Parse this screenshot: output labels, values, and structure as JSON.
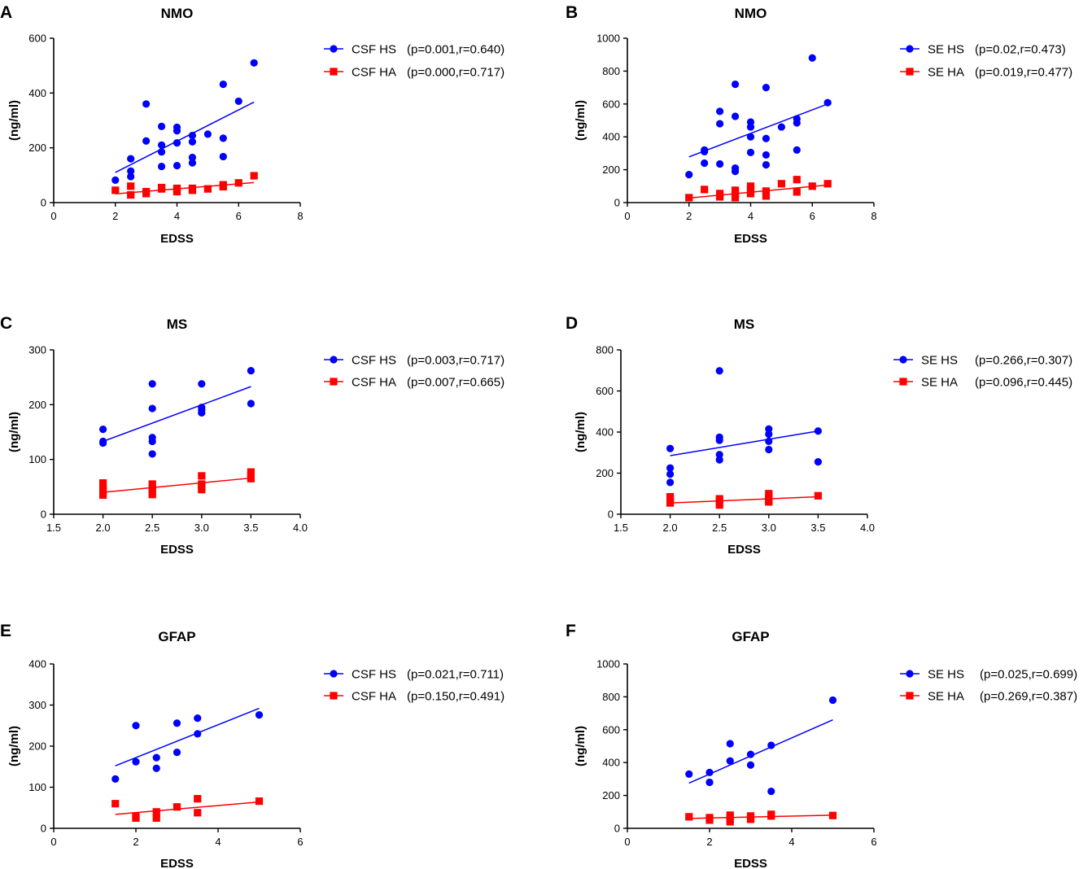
{
  "colors": {
    "hs": "#0000ff",
    "ha": "#ff0000",
    "axis": "#000000"
  },
  "chart_data": [
    {
      "panel": "A",
      "type": "scatter",
      "title": "NMO",
      "xlabel": "EDSS",
      "ylabel": "(ng/ml)",
      "xlim": [
        0,
        8
      ],
      "ylim": [
        0,
        600
      ],
      "xticks": [
        0,
        2,
        4,
        6,
        8
      ],
      "xtick_labels": [
        "0",
        "2",
        "4",
        "6",
        "8"
      ],
      "yticks": [
        0,
        200,
        400,
        600
      ],
      "ytick_labels": [
        "0",
        "200",
        "400",
        "600"
      ],
      "legend_position": "right",
      "series": [
        {
          "name": "CSF HS",
          "stats": "(p=0.001,r=0.640)",
          "color": "#0000ff",
          "marker": "circle",
          "points": [
            [
              2,
              82
            ],
            [
              2.5,
              160
            ],
            [
              2.5,
              115
            ],
            [
              2.5,
              95
            ],
            [
              3,
              360
            ],
            [
              3,
              225
            ],
            [
              3.5,
              278
            ],
            [
              3.5,
              210
            ],
            [
              3.5,
              185
            ],
            [
              3.5,
              132
            ],
            [
              4,
              275
            ],
            [
              4,
              262
            ],
            [
              4,
              218
            ],
            [
              4,
              135
            ],
            [
              4.5,
              245
            ],
            [
              4.5,
              222
            ],
            [
              4.5,
              165
            ],
            [
              4.5,
              145
            ],
            [
              5,
              250
            ],
            [
              5.5,
              432
            ],
            [
              5.5,
              235
            ],
            [
              5.5,
              168
            ],
            [
              6,
              370
            ],
            [
              6.5,
              510
            ]
          ],
          "fit": [
            [
              2,
              110
            ],
            [
              6.5,
              367
            ]
          ]
        },
        {
          "name": "CSF HA",
          "stats": "(p=0.000,r=0.717)",
          "color": "#ff0000",
          "marker": "square",
          "points": [
            [
              2,
              45
            ],
            [
              2.5,
              60
            ],
            [
              2.5,
              28
            ],
            [
              3,
              40
            ],
            [
              3,
              33
            ],
            [
              3.5,
              55
            ],
            [
              3.5,
              50
            ],
            [
              4,
              52
            ],
            [
              4,
              45
            ],
            [
              4,
              40
            ],
            [
              4.5,
              52
            ],
            [
              4.5,
              45
            ],
            [
              5,
              50
            ],
            [
              5.5,
              65
            ],
            [
              5.5,
              58
            ],
            [
              6,
              72
            ],
            [
              6.5,
              98
            ]
          ],
          "fit": [
            [
              2,
              32
            ],
            [
              6.5,
              73
            ]
          ]
        }
      ]
    },
    {
      "panel": "B",
      "type": "scatter",
      "title": "NMO",
      "xlabel": "EDSS",
      "ylabel": "(ng/ml)",
      "xlim": [
        0,
        8
      ],
      "ylim": [
        0,
        1000
      ],
      "xticks": [
        0,
        2,
        4,
        6,
        8
      ],
      "xtick_labels": [
        "0",
        "2",
        "4",
        "6",
        "8"
      ],
      "yticks": [
        0,
        200,
        400,
        600,
        800,
        1000
      ],
      "ytick_labels": [
        "0",
        "200",
        "400",
        "600",
        "800",
        "1000"
      ],
      "legend_position": "right",
      "series": [
        {
          "name": "SE HS",
          "stats": "(p=0.02,r=0.473)",
          "color": "#0000ff",
          "marker": "circle",
          "points": [
            [
              2,
              170
            ],
            [
              2.5,
              320
            ],
            [
              2.5,
              310
            ],
            [
              2.5,
              240
            ],
            [
              3,
              555
            ],
            [
              3,
              480
            ],
            [
              3,
              235
            ],
            [
              3.5,
              720
            ],
            [
              3.5,
              525
            ],
            [
              3.5,
              210
            ],
            [
              3.5,
              190
            ],
            [
              4,
              490
            ],
            [
              4,
              460
            ],
            [
              4,
              400
            ],
            [
              4,
              305
            ],
            [
              4.5,
              700
            ],
            [
              4.5,
              390
            ],
            [
              4.5,
              290
            ],
            [
              4.5,
              230
            ],
            [
              5,
              460
            ],
            [
              5.5,
              510
            ],
            [
              5.5,
              485
            ],
            [
              5.5,
              320
            ],
            [
              6,
              880
            ],
            [
              6.5,
              608
            ]
          ],
          "fit": [
            [
              2,
              278
            ],
            [
              6.5,
              600
            ]
          ]
        },
        {
          "name": "SE HA",
          "stats": "(p=0.019,r=0.477)",
          "color": "#ff0000",
          "marker": "square",
          "points": [
            [
              2,
              30
            ],
            [
              2.5,
              80
            ],
            [
              3,
              55
            ],
            [
              3,
              35
            ],
            [
              3.5,
              75
            ],
            [
              3.5,
              50
            ],
            [
              3.5,
              30
            ],
            [
              4,
              100
            ],
            [
              4,
              80
            ],
            [
              4,
              55
            ],
            [
              4.5,
              70
            ],
            [
              4.5,
              40
            ],
            [
              5,
              115
            ],
            [
              5.5,
              140
            ],
            [
              5.5,
              65
            ],
            [
              6,
              100
            ],
            [
              6.5,
              115
            ]
          ],
          "fit": [
            [
              2,
              28
            ],
            [
              6.5,
              107
            ]
          ]
        }
      ]
    },
    {
      "panel": "C",
      "type": "scatter",
      "title": "MS",
      "xlabel": "EDSS",
      "ylabel": "(ng/ml)",
      "xlim": [
        1.5,
        4.0
      ],
      "ylim": [
        0,
        300
      ],
      "xticks": [
        1.5,
        2.0,
        2.5,
        3.0,
        3.5,
        4.0
      ],
      "xtick_labels": [
        "1.5",
        "2.0",
        "2.5",
        "3.0",
        "3.5",
        "4.0"
      ],
      "yticks": [
        0,
        100,
        200,
        300
      ],
      "ytick_labels": [
        "0",
        "100",
        "200",
        "300"
      ],
      "legend_position": "right",
      "series": [
        {
          "name": "CSF HS",
          "stats": "(p=0.003,r=0.717)",
          "color": "#0000ff",
          "marker": "circle",
          "points": [
            [
              2,
              155
            ],
            [
              2,
              133
            ],
            [
              2,
              130
            ],
            [
              2.5,
              238
            ],
            [
              2.5,
              193
            ],
            [
              2.5,
              140
            ],
            [
              2.5,
              133
            ],
            [
              2.5,
              110
            ],
            [
              3,
              238
            ],
            [
              3,
              195
            ],
            [
              3,
              190
            ],
            [
              3,
              185
            ],
            [
              3.5,
              262
            ],
            [
              3.5,
              202
            ]
          ],
          "fit": [
            [
              2,
              133
            ],
            [
              3.5,
              233
            ]
          ]
        },
        {
          "name": "CSF HA",
          "stats": "(p=0.007,r=0.665)",
          "color": "#ff0000",
          "marker": "square",
          "points": [
            [
              2,
              57
            ],
            [
              2,
              50
            ],
            [
              2,
              42
            ],
            [
              2,
              35
            ],
            [
              2.5,
              55
            ],
            [
              2.5,
              47
            ],
            [
              2.5,
              42
            ],
            [
              2.5,
              36
            ],
            [
              3,
              70
            ],
            [
              3,
              55
            ],
            [
              3,
              50
            ],
            [
              3,
              45
            ],
            [
              3.5,
              77
            ],
            [
              3.5,
              70
            ],
            [
              3.5,
              65
            ]
          ],
          "fit": [
            [
              2,
              40
            ],
            [
              3.5,
              66
            ]
          ]
        }
      ]
    },
    {
      "panel": "D",
      "type": "scatter",
      "title": "MS",
      "xlabel": "EDSS",
      "ylabel": "(ng/ml)",
      "xlim": [
        1.5,
        4.0
      ],
      "ylim": [
        0,
        800
      ],
      "xticks": [
        1.5,
        2.0,
        2.5,
        3.0,
        3.5,
        4.0
      ],
      "xtick_labels": [
        "1.5",
        "2.0",
        "2.5",
        "3.0",
        "3.5",
        "4.0"
      ],
      "yticks": [
        0,
        200,
        400,
        600,
        800
      ],
      "ytick_labels": [
        "0",
        "200",
        "400",
        "600",
        "800"
      ],
      "legend_position": "right",
      "series": [
        {
          "name": "SE HS",
          "stats": "(p=0.266,r=0.307)",
          "color": "#0000ff",
          "marker": "circle",
          "points": [
            [
              2,
              320
            ],
            [
              2,
              225
            ],
            [
              2,
              195
            ],
            [
              2,
              155
            ],
            [
              2.5,
              698
            ],
            [
              2.5,
              375
            ],
            [
              2.5,
              360
            ],
            [
              2.5,
              290
            ],
            [
              2.5,
              265
            ],
            [
              3,
              415
            ],
            [
              3,
              390
            ],
            [
              3,
              355
            ],
            [
              3,
              315
            ],
            [
              3.5,
              405
            ],
            [
              3.5,
              255
            ]
          ],
          "fit": [
            [
              2,
              285
            ],
            [
              3.5,
              405
            ]
          ]
        },
        {
          "name": "SE HA",
          "stats": "(p=0.096,r=0.445)",
          "color": "#ff0000",
          "marker": "square",
          "points": [
            [
              2,
              85
            ],
            [
              2,
              70
            ],
            [
              2,
              55
            ],
            [
              2.5,
              75
            ],
            [
              2.5,
              60
            ],
            [
              2.5,
              45
            ],
            [
              3,
              100
            ],
            [
              3,
              85
            ],
            [
              3,
              70
            ],
            [
              3,
              60
            ],
            [
              3.5,
              90
            ]
          ],
          "fit": [
            [
              2,
              55
            ],
            [
              3.5,
              85
            ]
          ]
        }
      ]
    },
    {
      "panel": "E",
      "type": "scatter",
      "title": "GFAP",
      "xlabel": "EDSS",
      "ylabel": "(ng/ml)",
      "xlim": [
        0,
        6
      ],
      "ylim": [
        0,
        400
      ],
      "xticks": [
        0,
        2,
        4,
        6
      ],
      "xtick_labels": [
        "0",
        "2",
        "4",
        "6"
      ],
      "yticks": [
        0,
        100,
        200,
        300,
        400
      ],
      "ytick_labels": [
        "0",
        "100",
        "200",
        "300",
        "400"
      ],
      "legend_position": "right",
      "series": [
        {
          "name": "CSF HS",
          "stats": "(p=0.021,r=0.711)",
          "color": "#0000ff",
          "marker": "circle",
          "points": [
            [
              1.5,
              120
            ],
            [
              2,
              250
            ],
            [
              2,
              162
            ],
            [
              2.5,
              172
            ],
            [
              2.5,
              146
            ],
            [
              3,
              256
            ],
            [
              3,
              185
            ],
            [
              3.5,
              268
            ],
            [
              3.5,
              230
            ],
            [
              5,
              276
            ]
          ],
          "fit": [
            [
              1.5,
              152
            ],
            [
              5,
              292
            ]
          ]
        },
        {
          "name": "CSF HA",
          "stats": "(p=0.150,r=0.491)",
          "color": "#ff0000",
          "marker": "square",
          "points": [
            [
              1.5,
              60
            ],
            [
              2,
              30
            ],
            [
              2,
              25
            ],
            [
              2.5,
              40
            ],
            [
              2.5,
              25
            ],
            [
              3,
              52
            ],
            [
              3.5,
              72
            ],
            [
              3.5,
              38
            ],
            [
              5,
              66
            ]
          ],
          "fit": [
            [
              1.5,
              34
            ],
            [
              5,
              64
            ]
          ]
        }
      ]
    },
    {
      "panel": "F",
      "type": "scatter",
      "title": "GFAP",
      "xlabel": "EDSS",
      "ylabel": "(ng/ml)",
      "xlim": [
        0,
        6
      ],
      "ylim": [
        0,
        1000
      ],
      "xticks": [
        0,
        2,
        4,
        6
      ],
      "xtick_labels": [
        "0",
        "2",
        "4",
        "6"
      ],
      "yticks": [
        0,
        200,
        400,
        600,
        800,
        1000
      ],
      "ytick_labels": [
        "0",
        "200",
        "400",
        "600",
        "800",
        "1000"
      ],
      "legend_position": "right",
      "series": [
        {
          "name": "SE HS",
          "stats": "(p=0.025,r=0.699)",
          "color": "#0000ff",
          "marker": "circle",
          "points": [
            [
              1.5,
              330
            ],
            [
              2,
              340
            ],
            [
              2,
              280
            ],
            [
              2.5,
              515
            ],
            [
              2.5,
              410
            ],
            [
              3,
              450
            ],
            [
              3,
              385
            ],
            [
              3.5,
              505
            ],
            [
              3.5,
              225
            ],
            [
              5,
              780
            ]
          ],
          "fit": [
            [
              1.5,
              275
            ],
            [
              5,
              660
            ]
          ]
        },
        {
          "name": "SE HA",
          "stats": "(p=0.269,r=0.387)",
          "color": "#ff0000",
          "marker": "square",
          "points": [
            [
              1.5,
              70
            ],
            [
              2,
              65
            ],
            [
              2,
              50
            ],
            [
              2.5,
              80
            ],
            [
              2.5,
              60
            ],
            [
              2.5,
              40
            ],
            [
              3,
              75
            ],
            [
              3,
              55
            ],
            [
              3.5,
              85
            ],
            [
              3.5,
              75
            ],
            [
              5,
              78
            ]
          ],
          "fit": [
            [
              1.5,
              60
            ],
            [
              5,
              80
            ]
          ]
        }
      ]
    }
  ]
}
